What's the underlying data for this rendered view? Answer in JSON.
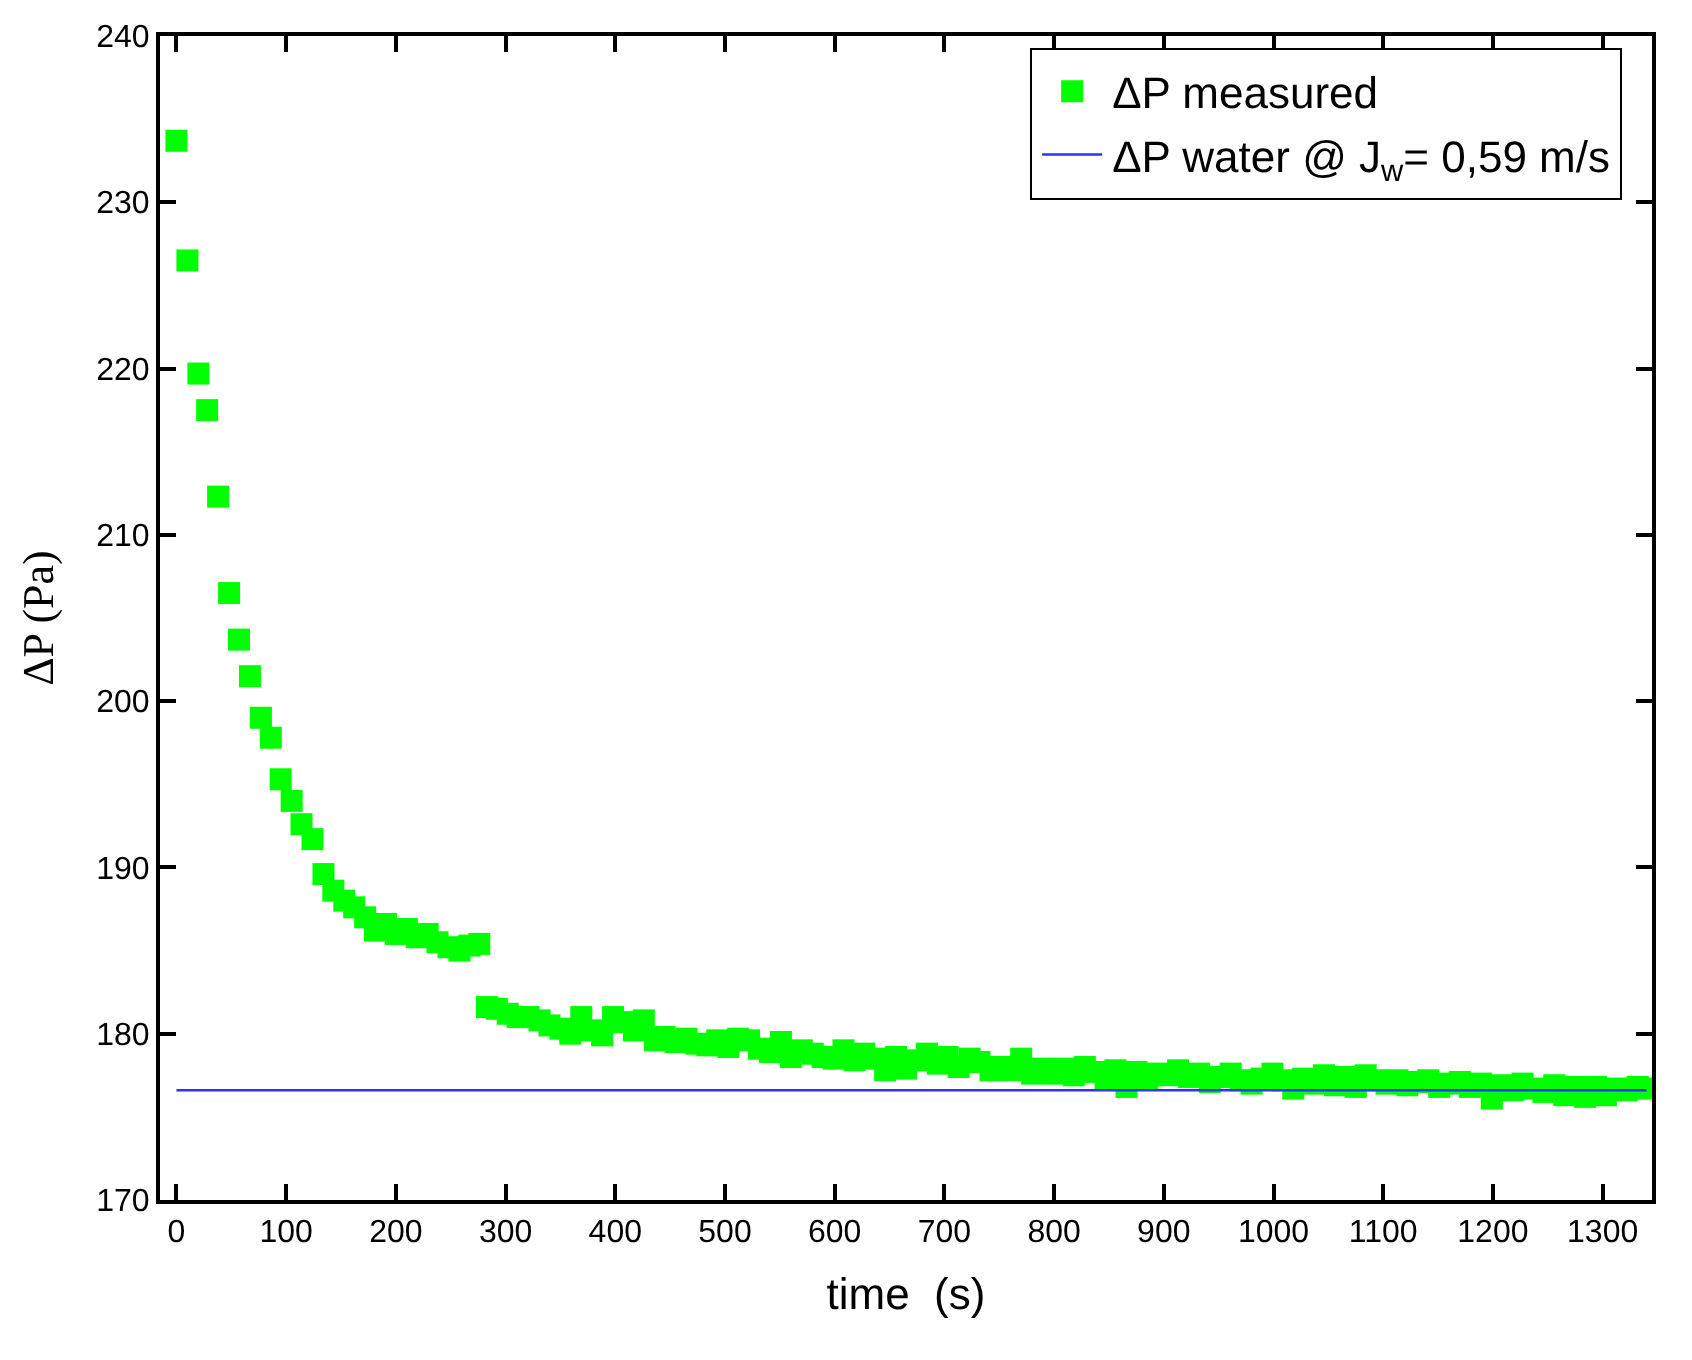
{
  "chart_data": {
    "type": "scatter",
    "xlabel": "time  (s)",
    "ylabel": "ΔP (Pa)",
    "xlim": [
      -15,
      1345
    ],
    "ylim": [
      170,
      240
    ],
    "xticks": [
      0,
      100,
      200,
      300,
      400,
      500,
      600,
      700,
      800,
      900,
      1000,
      1100,
      1200,
      1300
    ],
    "yticks": [
      170,
      180,
      190,
      200,
      210,
      220,
      230,
      240
    ],
    "legend": "top right",
    "series": [
      {
        "name": "ΔP measured",
        "marker": "square",
        "color": "#00ff00",
        "x": [
          0,
          10,
          20,
          28,
          38,
          48,
          57,
          67,
          77,
          86,
          95,
          105,
          114,
          124,
          134,
          143,
          153,
          162,
          172,
          181,
          191,
          200,
          210,
          219,
          229,
          238,
          248,
          258,
          267,
          276,
          283,
          292,
          302,
          311,
          321,
          331,
          340,
          350,
          359,
          369,
          378,
          388,
          398,
          407,
          417,
          426,
          436,
          445,
          455,
          465,
          474,
          484,
          493,
          503,
          512,
          522,
          531,
          541,
          551,
          560,
          570,
          580,
          589,
          599,
          608,
          618,
          627,
          637,
          646,
          656,
          665,
          675,
          684,
          694,
          703,
          713,
          723,
          732,
          742,
          751,
          761,
          770,
          780,
          790,
          799,
          809,
          818,
          828,
          837,
          847,
          856,
          866,
          875,
          885,
          894,
          904,
          913,
          923,
          932,
          942,
          951,
          961,
          970,
          980,
          989,
          999,
          1008,
          1018,
          1027,
          1037,
          1046,
          1056,
          1065,
          1075,
          1084,
          1094,
          1103,
          1113,
          1122,
          1132,
          1141,
          1151,
          1160,
          1170,
          1179,
          1189,
          1199,
          1208,
          1218,
          1227,
          1237,
          1246,
          1256,
          1265,
          1275,
          1284,
          1294,
          1303,
          1313,
          1322,
          1332,
          1341
        ],
        "values": [
          233.7,
          226.5,
          219.7,
          217.5,
          212.3,
          206.5,
          203.7,
          201.5,
          199.0,
          197.8,
          195.3,
          194.0,
          192.6,
          191.7,
          189.6,
          188.6,
          188.0,
          187.6,
          187.0,
          186.2,
          186.6,
          186.0,
          186.3,
          185.8,
          186.0,
          185.5,
          185.2,
          185.0,
          185.3,
          185.4,
          181.6,
          181.5,
          181.2,
          181.0,
          181.0,
          180.8,
          180.5,
          180.3,
          180.0,
          181.0,
          180.2,
          179.9,
          181.0,
          180.7,
          180.2,
          180.8,
          179.6,
          179.8,
          179.5,
          179.7,
          179.4,
          179.3,
          179.6,
          179.2,
          179.7,
          179.6,
          179.1,
          178.9,
          179.5,
          178.6,
          179.0,
          178.8,
          178.6,
          178.5,
          179.0,
          178.4,
          178.8,
          178.5,
          177.8,
          178.6,
          177.9,
          178.4,
          178.8,
          178.2,
          178.6,
          178.0,
          178.5,
          178.3,
          177.8,
          178.0,
          177.8,
          178.5,
          177.6,
          177.9,
          177.6,
          177.9,
          177.5,
          178.0,
          177.7,
          177.3,
          177.8,
          176.8,
          177.7,
          177.3,
          177.6,
          177.5,
          177.8,
          177.4,
          177.6,
          177.1,
          177.4,
          177.6,
          177.2,
          177.0,
          177.3,
          177.6,
          177.2,
          176.7,
          177.3,
          177.0,
          177.5,
          176.9,
          177.4,
          176.8,
          177.5,
          177.2,
          177.0,
          177.2,
          176.9,
          177.1,
          177.2,
          176.8,
          177.0,
          177.1,
          176.8,
          177.0,
          176.1,
          176.9,
          176.6,
          177.0,
          176.7,
          176.5,
          176.9,
          176.3,
          176.8,
          176.2,
          176.8,
          176.3,
          176.7,
          176.6,
          176.8,
          176.7
        ]
      },
      {
        "name": "ΔP water @ J$_{w}$= 0,59 m/s",
        "type": "line",
        "marker": "none",
        "color": "#3030ff",
        "x": [
          0,
          1340
        ],
        "values": [
          176.6,
          176.6
        ]
      }
    ]
  }
}
